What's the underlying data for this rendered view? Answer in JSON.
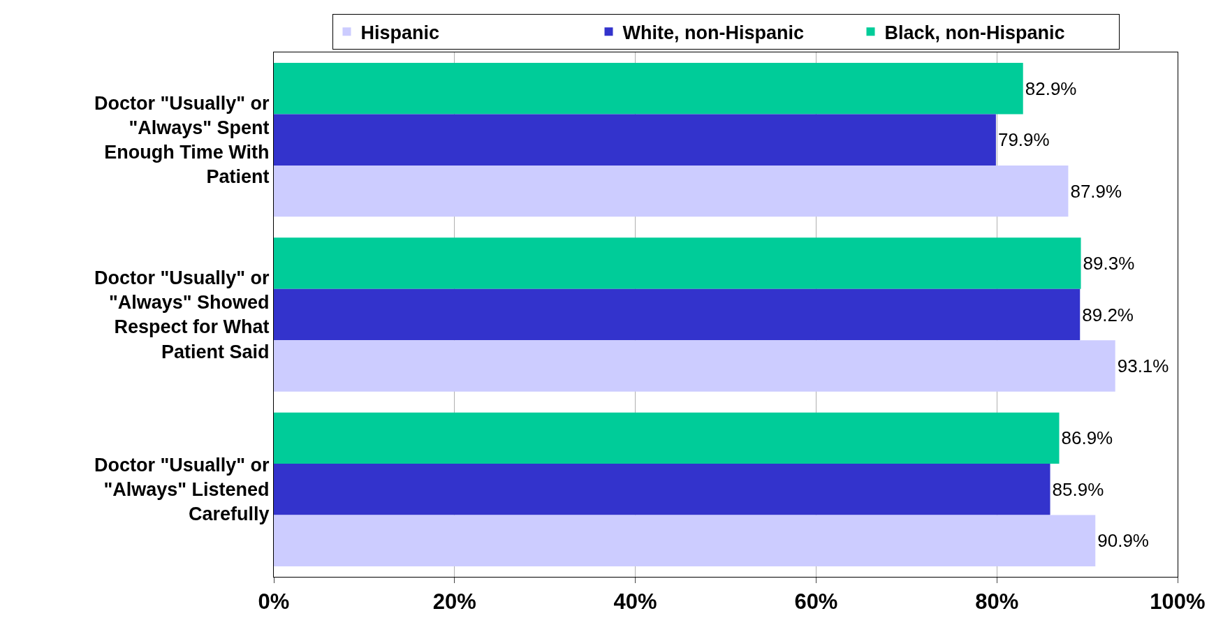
{
  "chart_data": {
    "type": "bar",
    "orientation": "horizontal",
    "categories": [
      "Doctor \"Usually\" or \"Always\" Spent Enough Time With Patient",
      "Doctor \"Usually\" or \"Always\" Showed Respect for What Patient Said",
      "Doctor \"Usually\" or \"Always\" Listened Carefully"
    ],
    "series": [
      {
        "name": "Black, non-Hispanic",
        "color": "#00cc99",
        "values": [
          82.9,
          89.3,
          86.9
        ],
        "value_labels": [
          "82.9%",
          "89.3%",
          "86.9%"
        ]
      },
      {
        "name": "White, non-Hispanic",
        "color": "#3333cc",
        "values": [
          79.9,
          89.2,
          85.9
        ],
        "value_labels": [
          "79.9%",
          "89.2%",
          "85.9%"
        ]
      },
      {
        "name": "Hispanic",
        "color": "#ccccff",
        "values": [
          87.9,
          93.1,
          90.9
        ],
        "value_labels": [
          "87.9%",
          "93.1%",
          "90.9%"
        ]
      }
    ],
    "xlim": [
      0,
      100
    ],
    "xticks": [
      {
        "value": 0,
        "label": "0%"
      },
      {
        "value": 20,
        "label": "20%"
      },
      {
        "value": 40,
        "label": "40%"
      },
      {
        "value": 60,
        "label": "60%"
      },
      {
        "value": 80,
        "label": "80%"
      },
      {
        "value": 100,
        "label": "100%"
      }
    ],
    "grid": "x",
    "legend": "top"
  }
}
